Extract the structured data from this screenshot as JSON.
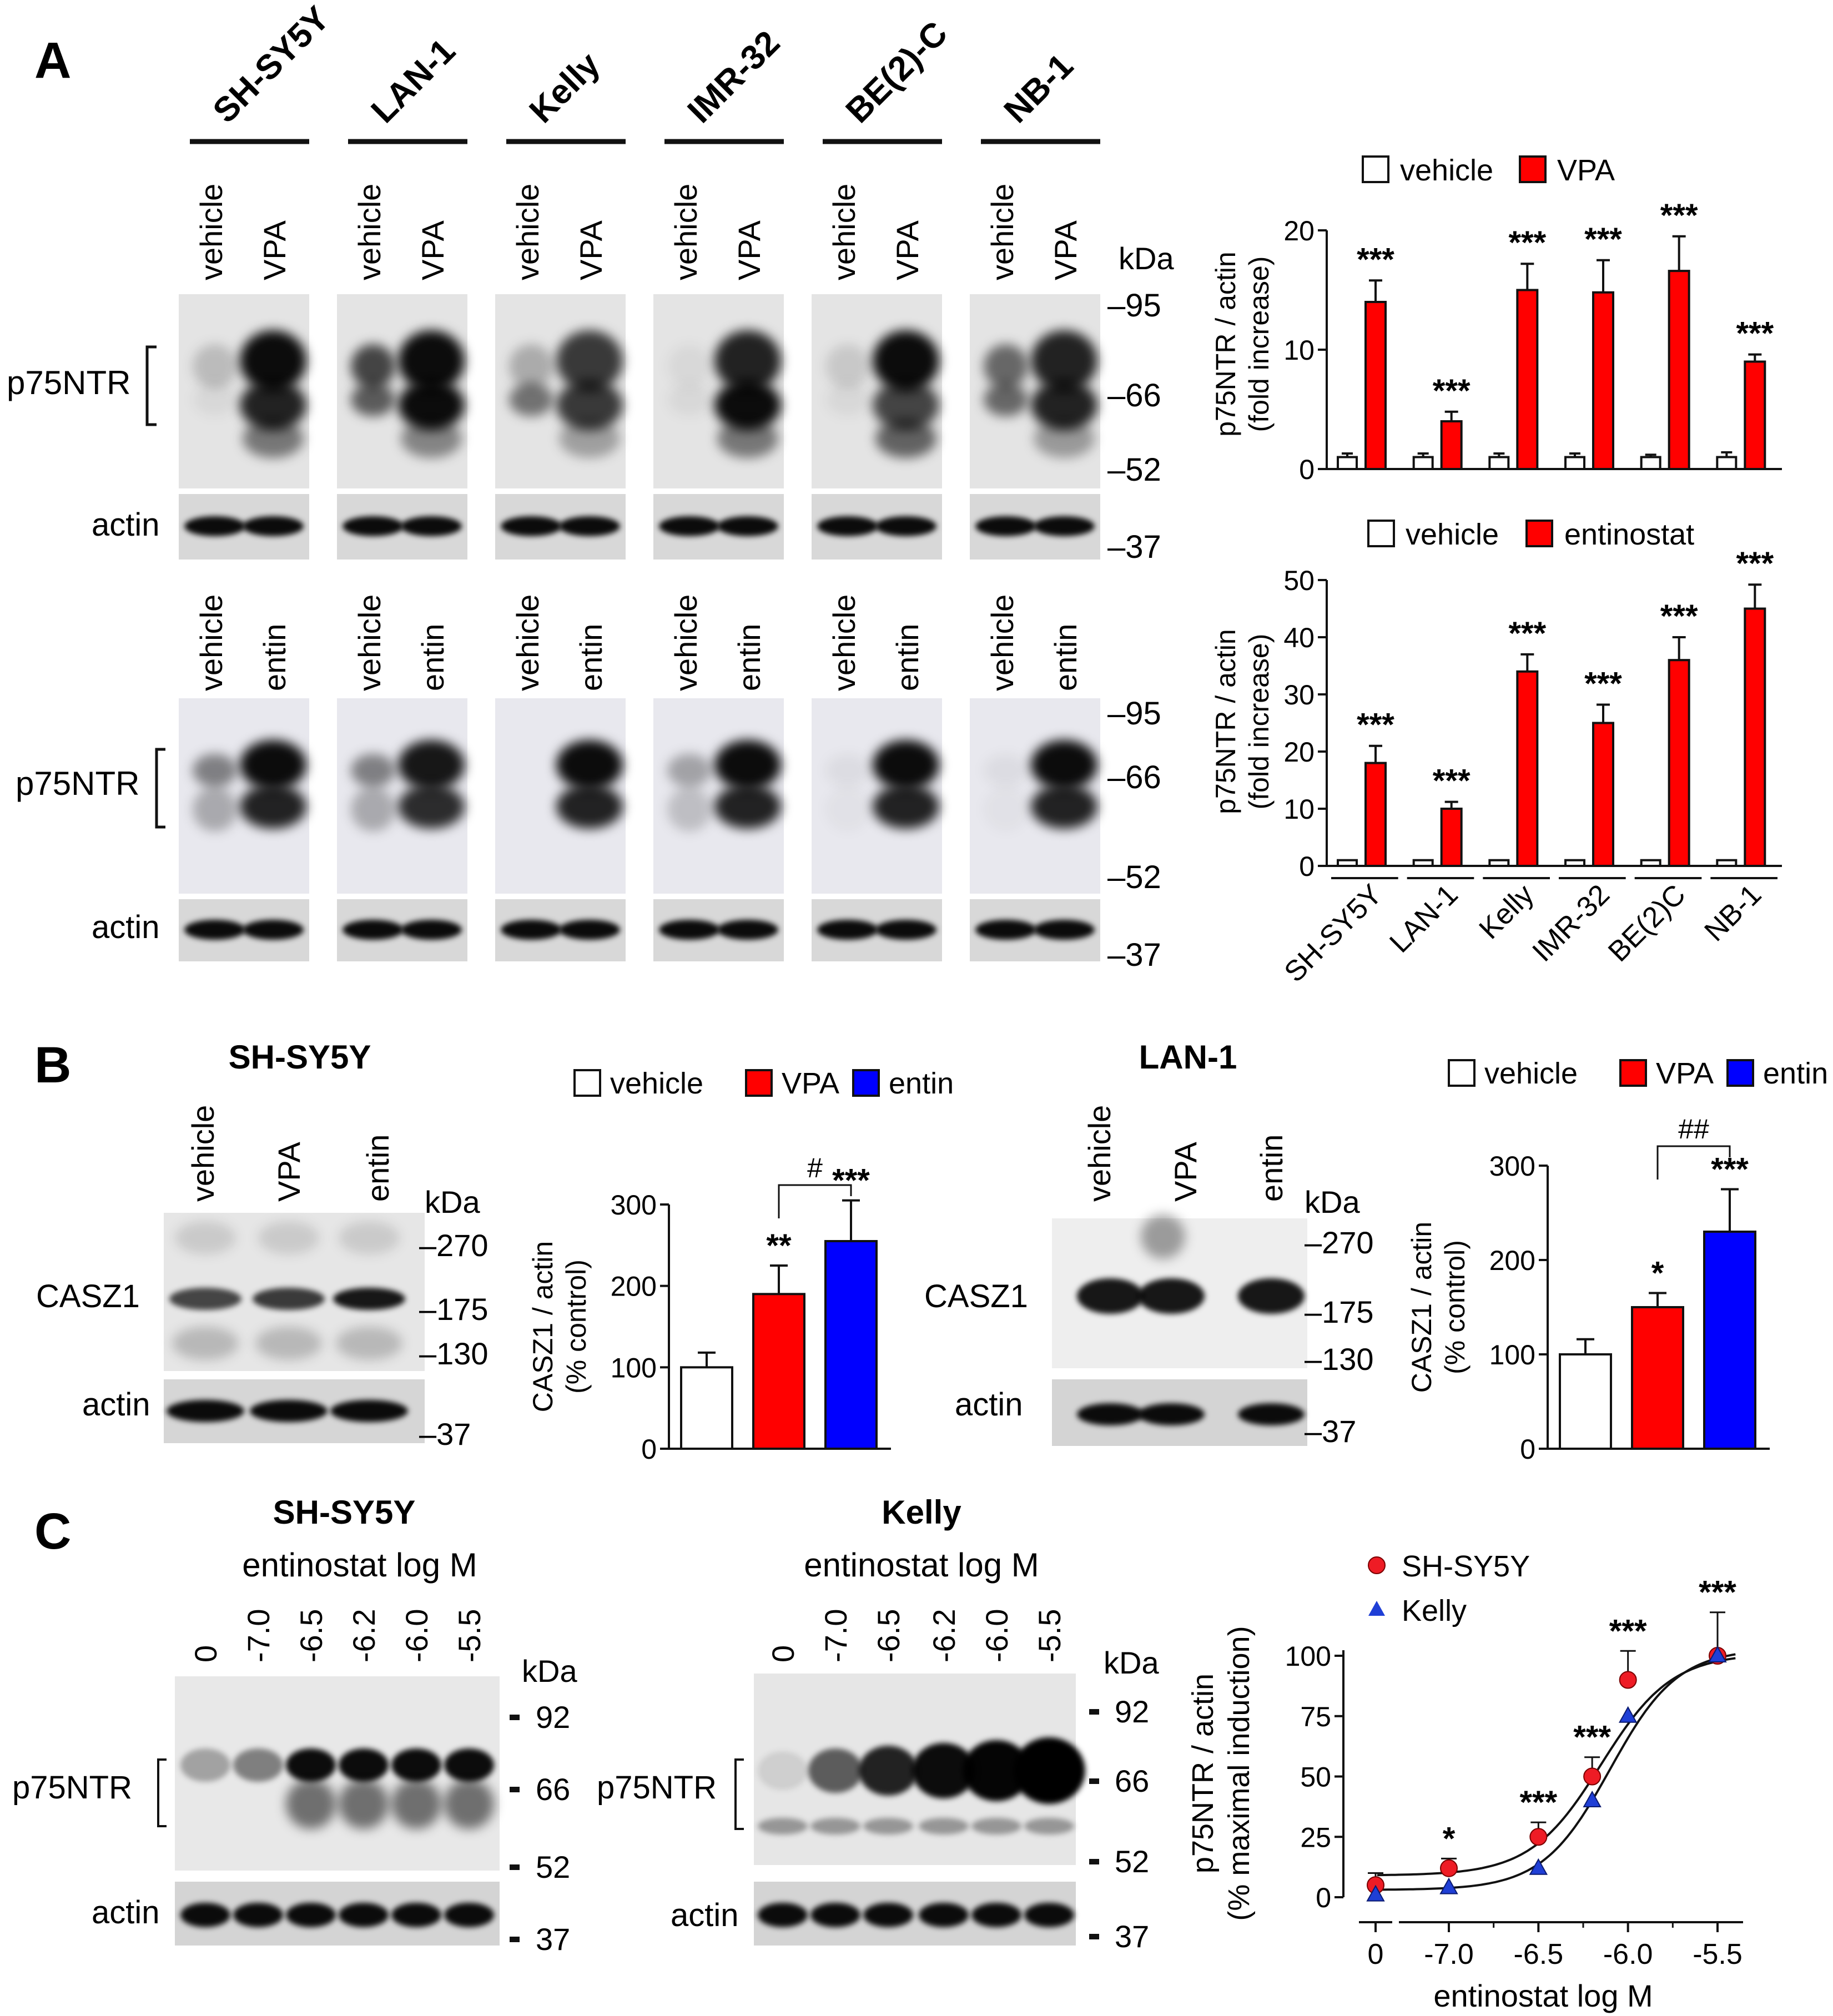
{
  "panel_labels": {
    "a": "A",
    "b": "B",
    "c": "C"
  },
  "panelA": {
    "cell_lines": [
      "SH-SY5Y",
      "LAN-1",
      "Kelly",
      "IMR-32",
      "BE(2)-C",
      "NB-1"
    ],
    "lane_vehicle": "vehicle",
    "lane_vpa": "VPA",
    "lane_entin": "entin",
    "kda": "kDa",
    "markers_top": [
      "95",
      "66",
      "52",
      "37"
    ],
    "markers_bottom": [
      "95",
      "66",
      "52",
      "37"
    ],
    "p75_label": "p75NTR",
    "actin_label": "actin"
  },
  "panelB": {
    "sh_title": "SH-SY5Y",
    "lan_title": "LAN-1",
    "lanes": [
      "vehicle",
      "VPA",
      "entin"
    ],
    "kda": "kDa",
    "markers": [
      "270",
      "175",
      "130",
      "37"
    ],
    "casz1_label": "CASZ1",
    "actin_label": "actin"
  },
  "panelC": {
    "sh_title": "SH-SY5Y",
    "kelly_title": "Kelly",
    "subtitle": "entinostat log M",
    "lanes": [
      "0",
      "-7.0",
      "-6.5",
      "-6.2",
      "-6.0",
      "-5.5"
    ],
    "kda": "kDa",
    "markers": [
      "92",
      "66",
      "52",
      "37"
    ],
    "p75_label": "p75NTR",
    "actin_label": "actin"
  },
  "colors": {
    "vehicle": "#ffffff",
    "vpa": "#ff0000",
    "entin": "#0000ff",
    "sh_series": "#ee1c25",
    "kelly_series": "#1f3fd6"
  },
  "chart_data": [
    {
      "type": "bar",
      "id": "A-VPA",
      "legend": [
        "vehicle",
        "VPA"
      ],
      "ylabel": "p75NTR / actin",
      "ylabel2": "(fold increase)",
      "ylim": [
        0,
        20
      ],
      "yticks": [
        "0",
        "10",
        "20"
      ],
      "categories": [
        "SH-SY5Y",
        "LAN-1",
        "Kelly",
        "IMR-32",
        "BE(2)C",
        "NB-1"
      ],
      "series": [
        {
          "name": "vehicle",
          "values": [
            1,
            1,
            1,
            1,
            1,
            1
          ],
          "errors": [
            0.3,
            0.3,
            0.3,
            0.3,
            0.2,
            0.4
          ]
        },
        {
          "name": "VPA",
          "values": [
            14,
            4,
            15,
            14.8,
            16.6,
            9
          ],
          "errors": [
            1.8,
            0.8,
            2.2,
            2.7,
            2.9,
            0.6
          ]
        }
      ],
      "annotations": [
        "***",
        "***",
        "***",
        "***",
        "***",
        "***"
      ]
    },
    {
      "type": "bar",
      "id": "A-entinostat",
      "legend": [
        "vehicle",
        "entinostat"
      ],
      "ylabel": "p75NTR / actin",
      "ylabel2": "(fold increase)",
      "ylim": [
        0,
        50
      ],
      "yticks": [
        "0",
        "10",
        "20",
        "30",
        "40",
        "50"
      ],
      "categories": [
        "SH-SY5Y",
        "LAN-1",
        "Kelly",
        "IMR-32",
        "BE(2)C",
        "NB-1"
      ],
      "series": [
        {
          "name": "vehicle",
          "values": [
            1,
            1,
            1,
            1,
            1,
            1
          ],
          "errors": [
            0.2,
            0.2,
            0.2,
            0.2,
            0.2,
            0.2
          ]
        },
        {
          "name": "entinostat",
          "values": [
            18,
            10,
            34,
            25,
            36,
            45
          ],
          "errors": [
            3,
            1.2,
            3,
            3.2,
            4,
            4.2
          ]
        }
      ],
      "annotations": [
        "***",
        "***",
        "***",
        "***",
        "***",
        "***"
      ]
    },
    {
      "type": "bar",
      "id": "B-SH-SY5Y",
      "legend": [
        "vehicle",
        "VPA",
        "entin"
      ],
      "ylabel": "CASZ1 / actin",
      "ylabel2": "(% control)",
      "ylim": [
        0,
        300
      ],
      "yticks": [
        "0",
        "100",
        "200",
        "300"
      ],
      "categories": [
        "vehicle",
        "VPA",
        "entin"
      ],
      "values": [
        100,
        190,
        255
      ],
      "errors": [
        18,
        35,
        50
      ],
      "annotations": [
        "",
        "**",
        "***"
      ],
      "bracket": "#"
    },
    {
      "type": "bar",
      "id": "B-LAN-1",
      "legend": [
        "vehicle",
        "VPA",
        "entin"
      ],
      "ylabel": "CASZ1 / actin",
      "ylabel2": "(% control)",
      "ylim": [
        0,
        300
      ],
      "yticks": [
        "0",
        "100",
        "200",
        "300"
      ],
      "categories": [
        "vehicle",
        "VPA",
        "entin"
      ],
      "values": [
        100,
        150,
        230
      ],
      "errors": [
        16,
        15,
        45
      ],
      "annotations": [
        "",
        "*",
        "***"
      ],
      "bracket": "##"
    },
    {
      "type": "scatter",
      "id": "C-dose-response",
      "xlabel": "entinostat log M",
      "ylabel": "p75NTR / actin",
      "ylabel2": "(% maximal induction)",
      "ylim": [
        0,
        100
      ],
      "yticks": [
        "0",
        "25",
        "50",
        "75",
        "100"
      ],
      "xticks": [
        "0",
        "-7.0",
        "-6.5",
        "-6.0",
        "-5.5"
      ],
      "x": [
        null,
        -7.0,
        -6.5,
        -6.2,
        -6.0,
        -5.5
      ],
      "series": [
        {
          "name": "SH-SY5Y",
          "values": [
            5,
            12,
            25,
            50,
            90,
            100
          ],
          "errors": [
            5,
            4,
            6,
            8,
            12,
            18
          ]
        },
        {
          "name": "Kelly",
          "values": [
            1,
            4,
            12,
            40,
            75,
            100
          ],
          "errors": [
            2,
            2,
            3,
            5,
            7,
            15
          ]
        }
      ],
      "annotations": [
        "",
        "*",
        "***",
        "***",
        "***",
        "***"
      ]
    }
  ]
}
